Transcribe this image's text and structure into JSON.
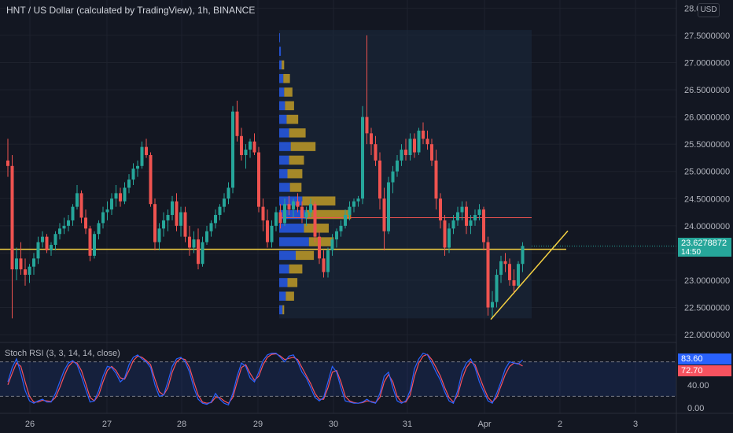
{
  "header": {
    "title": "HNT / US Dollar (calculated by TradingView), 1h, BINANCE",
    "currency_badge": "USD"
  },
  "colors": {
    "background": "#131722",
    "up": "#26a69a",
    "down": "#ef5350",
    "trendline": "#f5d142",
    "vp_up": "#2962ff",
    "vp_down": "#c9a227",
    "rsi_k": "#2962ff",
    "rsi_d": "#f7525f"
  },
  "chart_data": [
    {
      "type": "candlestick",
      "title": "HNT / US Dollar (calculated by TradingView), 1h, BINANCE",
      "ylim": [
        21.9,
        28.15
      ],
      "price_axis_labels": [
        "22.0000000",
        "22.5000000",
        "23.0000000",
        "23.5000000",
        "24.0000000",
        "24.5000000",
        "25.0000000",
        "25.5000000",
        "26.0000000",
        "26.5000000",
        "27.0000000",
        "27.5000000",
        "28.0"
      ],
      "price_ticks": [
        22.0,
        22.5,
        23.0,
        23.5,
        24.0,
        24.5,
        25.0,
        25.5,
        26.0,
        26.5,
        27.0,
        27.5,
        28.0
      ],
      "x_tick_labels": [
        "26",
        "27",
        "28",
        "29",
        "30",
        "31",
        "Apr",
        "2",
        "3"
      ],
      "last_price": "23.6278872",
      "countdown": "14:50",
      "horizontal_line_price": 23.57,
      "poc_line_price": 24.15,
      "trendline": {
        "from": {
          "time_index": 139,
          "price": 22.28
        },
        "to": {
          "time_index": 149,
          "price": 23.72
        }
      },
      "ohlc": [
        [
          25.2,
          25.6,
          24.9,
          25.1
        ],
        [
          25.1,
          25.3,
          22.3,
          23.2
        ],
        [
          23.2,
          23.6,
          23.0,
          23.4
        ],
        [
          23.4,
          23.7,
          23.1,
          23.2
        ],
        [
          23.2,
          23.4,
          22.9,
          23.1
        ],
        [
          23.1,
          23.3,
          22.95,
          23.25
        ],
        [
          23.25,
          23.5,
          23.1,
          23.4
        ],
        [
          23.4,
          23.8,
          23.3,
          23.7
        ],
        [
          23.7,
          23.9,
          23.6,
          23.8
        ],
        [
          23.8,
          23.85,
          23.5,
          23.55
        ],
        [
          23.55,
          23.7,
          23.45,
          23.65
        ],
        [
          23.65,
          23.9,
          23.55,
          23.85
        ],
        [
          23.85,
          24.05,
          23.75,
          23.95
        ],
        [
          23.95,
          24.15,
          23.85,
          24.0
        ],
        [
          24.0,
          24.2,
          23.9,
          24.1
        ],
        [
          24.1,
          24.4,
          24.0,
          24.35
        ],
        [
          24.35,
          24.75,
          24.3,
          24.6
        ],
        [
          24.6,
          24.65,
          24.05,
          24.15
        ],
        [
          24.15,
          24.3,
          23.85,
          23.95
        ],
        [
          23.95,
          24.0,
          23.35,
          23.45
        ],
        [
          23.45,
          23.9,
          23.4,
          23.85
        ],
        [
          23.85,
          24.1,
          23.75,
          24.05
        ],
        [
          24.05,
          24.35,
          23.95,
          24.25
        ],
        [
          24.25,
          24.45,
          24.1,
          24.3
        ],
        [
          24.3,
          24.6,
          24.2,
          24.5
        ],
        [
          24.5,
          24.75,
          24.35,
          24.6
        ],
        [
          24.6,
          24.7,
          24.35,
          24.45
        ],
        [
          24.45,
          24.8,
          24.4,
          24.7
        ],
        [
          24.7,
          24.95,
          24.6,
          24.85
        ],
        [
          24.85,
          25.15,
          24.75,
          25.05
        ],
        [
          25.05,
          25.2,
          24.9,
          25.1
        ],
        [
          25.1,
          25.55,
          25.05,
          25.45
        ],
        [
          25.45,
          25.6,
          25.25,
          25.3
        ],
        [
          25.3,
          25.35,
          24.35,
          24.4
        ],
        [
          24.4,
          24.5,
          23.55,
          23.7
        ],
        [
          23.7,
          24.05,
          23.55,
          23.95
        ],
        [
          23.95,
          24.25,
          23.8,
          24.1
        ],
        [
          24.1,
          24.3,
          23.9,
          24.2
        ],
        [
          24.2,
          24.55,
          24.1,
          24.45
        ],
        [
          24.45,
          24.6,
          23.9,
          24.0
        ],
        [
          24.0,
          24.35,
          23.8,
          24.25
        ],
        [
          24.25,
          24.35,
          23.7,
          23.8
        ],
        [
          23.8,
          24.0,
          23.45,
          23.6
        ],
        [
          23.6,
          23.9,
          23.5,
          23.75
        ],
        [
          23.75,
          23.95,
          23.2,
          23.3
        ],
        [
          23.3,
          23.8,
          23.25,
          23.7
        ],
        [
          23.7,
          24.0,
          23.65,
          23.9
        ],
        [
          23.9,
          24.1,
          23.8,
          24.05
        ],
        [
          24.05,
          24.3,
          23.95,
          24.2
        ],
        [
          24.2,
          24.4,
          24.1,
          24.35
        ],
        [
          24.35,
          24.6,
          24.25,
          24.5
        ],
        [
          24.5,
          24.8,
          24.4,
          24.7
        ],
        [
          24.7,
          26.2,
          24.6,
          26.1
        ],
        [
          26.1,
          26.3,
          25.55,
          25.65
        ],
        [
          25.65,
          25.8,
          25.2,
          25.3
        ],
        [
          25.3,
          25.5,
          25.05,
          25.4
        ],
        [
          25.4,
          25.6,
          25.25,
          25.55
        ],
        [
          25.55,
          25.7,
          25.3,
          25.35
        ],
        [
          25.35,
          25.45,
          24.25,
          24.35
        ],
        [
          24.35,
          24.5,
          23.9,
          24.1
        ],
        [
          24.1,
          24.3,
          23.6,
          23.7
        ],
        [
          23.7,
          24.1,
          23.6,
          24.0
        ],
        [
          24.0,
          24.35,
          23.9,
          24.25
        ],
        [
          24.25,
          24.4,
          23.95,
          24.05
        ],
        [
          24.05,
          24.5,
          24.0,
          24.4
        ],
        [
          24.4,
          24.55,
          24.2,
          24.3
        ],
        [
          24.3,
          24.5,
          24.15,
          24.45
        ],
        [
          24.45,
          24.6,
          24.25,
          24.35
        ],
        [
          24.35,
          24.45,
          24.05,
          24.15
        ],
        [
          24.15,
          24.35,
          24.0,
          24.25
        ],
        [
          24.25,
          24.5,
          24.15,
          24.4
        ],
        [
          24.4,
          24.45,
          23.7,
          23.8
        ],
        [
          23.8,
          23.9,
          23.3,
          23.4
        ],
        [
          23.4,
          23.55,
          23.05,
          23.15
        ],
        [
          23.15,
          23.6,
          23.05,
          23.55
        ],
        [
          23.55,
          23.85,
          23.45,
          23.75
        ],
        [
          23.75,
          23.95,
          23.6,
          23.9
        ],
        [
          23.9,
          24.1,
          23.8,
          24.0
        ],
        [
          24.0,
          24.3,
          23.95,
          24.2
        ],
        [
          24.2,
          24.45,
          24.1,
          24.35
        ],
        [
          24.35,
          24.5,
          24.25,
          24.45
        ],
        [
          24.45,
          24.55,
          24.35,
          24.5
        ],
        [
          24.5,
          26.2,
          24.4,
          26.0
        ],
        [
          26.0,
          27.5,
          25.5,
          25.7
        ],
        [
          25.7,
          25.8,
          25.3,
          25.5
        ],
        [
          25.5,
          25.65,
          25.1,
          25.2
        ],
        [
          25.2,
          25.35,
          24.3,
          24.5
        ],
        [
          24.5,
          24.7,
          23.55,
          23.9
        ],
        [
          23.9,
          24.9,
          23.85,
          24.8
        ],
        [
          24.8,
          25.1,
          24.6,
          25.0
        ],
        [
          25.0,
          25.3,
          24.9,
          25.2
        ],
        [
          25.2,
          25.5,
          25.1,
          25.4
        ],
        [
          25.4,
          25.6,
          25.2,
          25.3
        ],
        [
          25.3,
          25.7,
          25.2,
          25.6
        ],
        [
          25.6,
          25.7,
          25.25,
          25.35
        ],
        [
          25.35,
          25.8,
          25.3,
          25.75
        ],
        [
          25.75,
          25.9,
          25.5,
          25.6
        ],
        [
          25.6,
          25.75,
          25.4,
          25.5
        ],
        [
          25.5,
          25.6,
          25.1,
          25.2
        ],
        [
          25.2,
          25.4,
          24.3,
          24.5
        ],
        [
          24.5,
          24.6,
          23.95,
          24.1
        ],
        [
          24.1,
          24.2,
          23.45,
          23.6
        ],
        [
          23.6,
          24.05,
          23.5,
          23.95
        ],
        [
          23.95,
          24.2,
          23.85,
          24.1
        ],
        [
          24.1,
          24.35,
          24.0,
          24.25
        ],
        [
          24.25,
          24.45,
          24.1,
          24.35
        ],
        [
          24.35,
          24.45,
          23.85,
          24.0
        ],
        [
          24.0,
          24.2,
          23.85,
          24.1
        ],
        [
          24.1,
          24.3,
          24.0,
          24.2
        ],
        [
          24.2,
          24.4,
          24.1,
          24.3
        ],
        [
          24.3,
          24.35,
          23.55,
          23.7
        ],
        [
          23.7,
          23.8,
          22.35,
          22.5
        ],
        [
          22.5,
          22.8,
          22.3,
          22.6
        ],
        [
          22.6,
          23.2,
          22.5,
          23.1
        ],
        [
          23.1,
          23.45,
          22.95,
          23.35
        ],
        [
          23.35,
          23.5,
          23.15,
          23.3
        ],
        [
          23.3,
          23.4,
          22.9,
          23.0
        ],
        [
          23.0,
          23.2,
          22.75,
          22.9
        ],
        [
          22.9,
          23.35,
          22.85,
          23.3
        ],
        [
          23.3,
          23.7,
          23.15,
          23.63
        ]
      ],
      "volume_profile": [
        {
          "price": 27.45,
          "up": 1,
          "down": 0
        },
        {
          "price": 27.2,
          "up": 2,
          "down": 0
        },
        {
          "price": 26.95,
          "up": 3,
          "down": 3
        },
        {
          "price": 26.7,
          "up": 5,
          "down": 8
        },
        {
          "price": 26.45,
          "up": 6,
          "down": 10
        },
        {
          "price": 26.2,
          "up": 7,
          "down": 11
        },
        {
          "price": 25.95,
          "up": 9,
          "down": 14
        },
        {
          "price": 25.7,
          "up": 12,
          "down": 20
        },
        {
          "price": 25.45,
          "up": 14,
          "down": 30
        },
        {
          "price": 25.2,
          "up": 12,
          "down": 18
        },
        {
          "price": 24.95,
          "up": 10,
          "down": 18
        },
        {
          "price": 24.7,
          "up": 13,
          "down": 14
        },
        {
          "price": 24.45,
          "up": 28,
          "down": 40
        },
        {
          "price": 24.2,
          "up": 32,
          "down": 55
        },
        {
          "price": 23.95,
          "up": 30,
          "down": 30
        },
        {
          "price": 23.7,
          "up": 36,
          "down": 30
        },
        {
          "price": 23.45,
          "up": 20,
          "down": 22
        },
        {
          "price": 23.2,
          "up": 12,
          "down": 16
        },
        {
          "price": 22.95,
          "up": 10,
          "down": 12
        },
        {
          "price": 22.7,
          "up": 8,
          "down": 10
        },
        {
          "price": 22.45,
          "up": 4,
          "down": 2
        }
      ]
    },
    {
      "type": "line",
      "title": "Stoch RSI (3, 3, 14, 14, close)",
      "ylim": [
        0,
        100
      ],
      "axis_labels": [
        "40.00",
        "0.00"
      ],
      "band_levels": [
        20,
        80
      ],
      "last_k": "83.60",
      "last_d": "72.70",
      "series": [
        {
          "name": "K",
          "values": [
            45,
            70,
            85,
            60,
            30,
            12,
            8,
            12,
            15,
            10,
            10,
            25,
            45,
            65,
            78,
            82,
            75,
            55,
            32,
            10,
            12,
            30,
            55,
            72,
            70,
            60,
            45,
            52,
            75,
            88,
            92,
            85,
            80,
            70,
            40,
            20,
            22,
            45,
            72,
            85,
            88,
            80,
            62,
            35,
            15,
            8,
            6,
            10,
            25,
            15,
            8,
            5,
            25,
            55,
            78,
            72,
            52,
            45,
            62,
            82,
            92,
            95,
            95,
            88,
            80,
            90,
            92,
            80,
            62,
            52,
            35,
            18,
            12,
            18,
            45,
            72,
            62,
            35,
            12,
            10,
            8,
            8,
            10,
            15,
            10,
            8,
            25,
            55,
            62,
            35,
            12,
            8,
            12,
            30,
            68,
            85,
            95,
            92,
            78,
            62,
            48,
            28,
            12,
            8,
            30,
            62,
            78,
            85,
            70,
            45,
            28,
            12,
            8,
            25,
            45,
            68,
            80,
            78,
            76,
            83.6
          ]
        },
        {
          "name": "D",
          "values": [
            40,
            60,
            78,
            72,
            45,
            20,
            10,
            10,
            13,
            12,
            11,
            18,
            35,
            55,
            72,
            80,
            78,
            65,
            42,
            18,
            12,
            22,
            45,
            65,
            72,
            65,
            52,
            50,
            65,
            82,
            90,
            88,
            82,
            75,
            50,
            28,
            22,
            35,
            62,
            80,
            86,
            84,
            70,
            45,
            22,
            10,
            8,
            9,
            18,
            18,
            12,
            8,
            18,
            45,
            70,
            75,
            60,
            48,
            55,
            75,
            88,
            93,
            94,
            90,
            84,
            86,
            88,
            84,
            70,
            56,
            42,
            25,
            15,
            15,
            35,
            62,
            65,
            45,
            20,
            12,
            9,
            8,
            9,
            12,
            11,
            9,
            18,
            45,
            58,
            45,
            20,
            10,
            10,
            22,
            55,
            78,
            90,
            93,
            84,
            70,
            55,
            35,
            18,
            10,
            22,
            50,
            70,
            80,
            75,
            55,
            35,
            18,
            10,
            18,
            38,
            58,
            72,
            78,
            77,
            72.7
          ]
        }
      ]
    }
  ]
}
